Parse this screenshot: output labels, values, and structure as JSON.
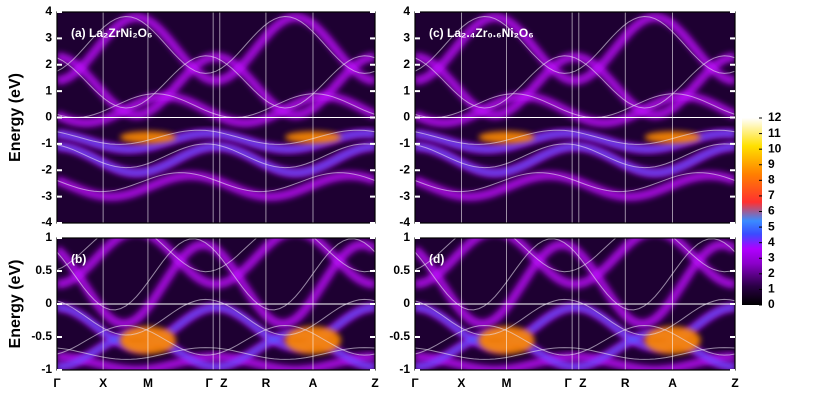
{
  "chart_data": [
    {
      "type": "heatmap",
      "label": "(a) La₂ZrNi₂O₆",
      "ylabel": "Energy (eV)",
      "ylim": [
        -4,
        4
      ],
      "yticks": [
        -4,
        -3,
        -2,
        -1,
        0,
        1,
        2,
        3,
        4
      ]
    },
    {
      "type": "heatmap",
      "label": "(c) La₂.₄Zr₀.₆Ni₂O₆",
      "ylim": [
        -4,
        4
      ],
      "yticks": [
        -4,
        -3,
        -2,
        -1,
        0,
        1,
        2,
        3,
        4
      ]
    },
    {
      "type": "heatmap",
      "label": "(b)",
      "ylabel": "Energy (eV)",
      "ylim": [
        -1,
        1
      ],
      "yticks": [
        -1,
        -0.5,
        0,
        0.5,
        1
      ],
      "categories": [
        "Γ",
        "X",
        "M",
        "Γ",
        "Z",
        "R",
        "A",
        "Z"
      ]
    },
    {
      "type": "heatmap",
      "label": "(d)",
      "ylim": [
        -1,
        1
      ],
      "yticks": [
        -1,
        -0.5,
        0,
        0.5,
        1
      ],
      "categories": [
        "Γ",
        "X",
        "M",
        "Γ",
        "Z",
        "R",
        "A",
        "Z"
      ]
    },
    {
      "type": "colorbar",
      "lim": [
        0,
        12
      ],
      "ticks": [
        0,
        1,
        2,
        3,
        4,
        5,
        6,
        7,
        8,
        9,
        10,
        11,
        12
      ]
    }
  ]
}
